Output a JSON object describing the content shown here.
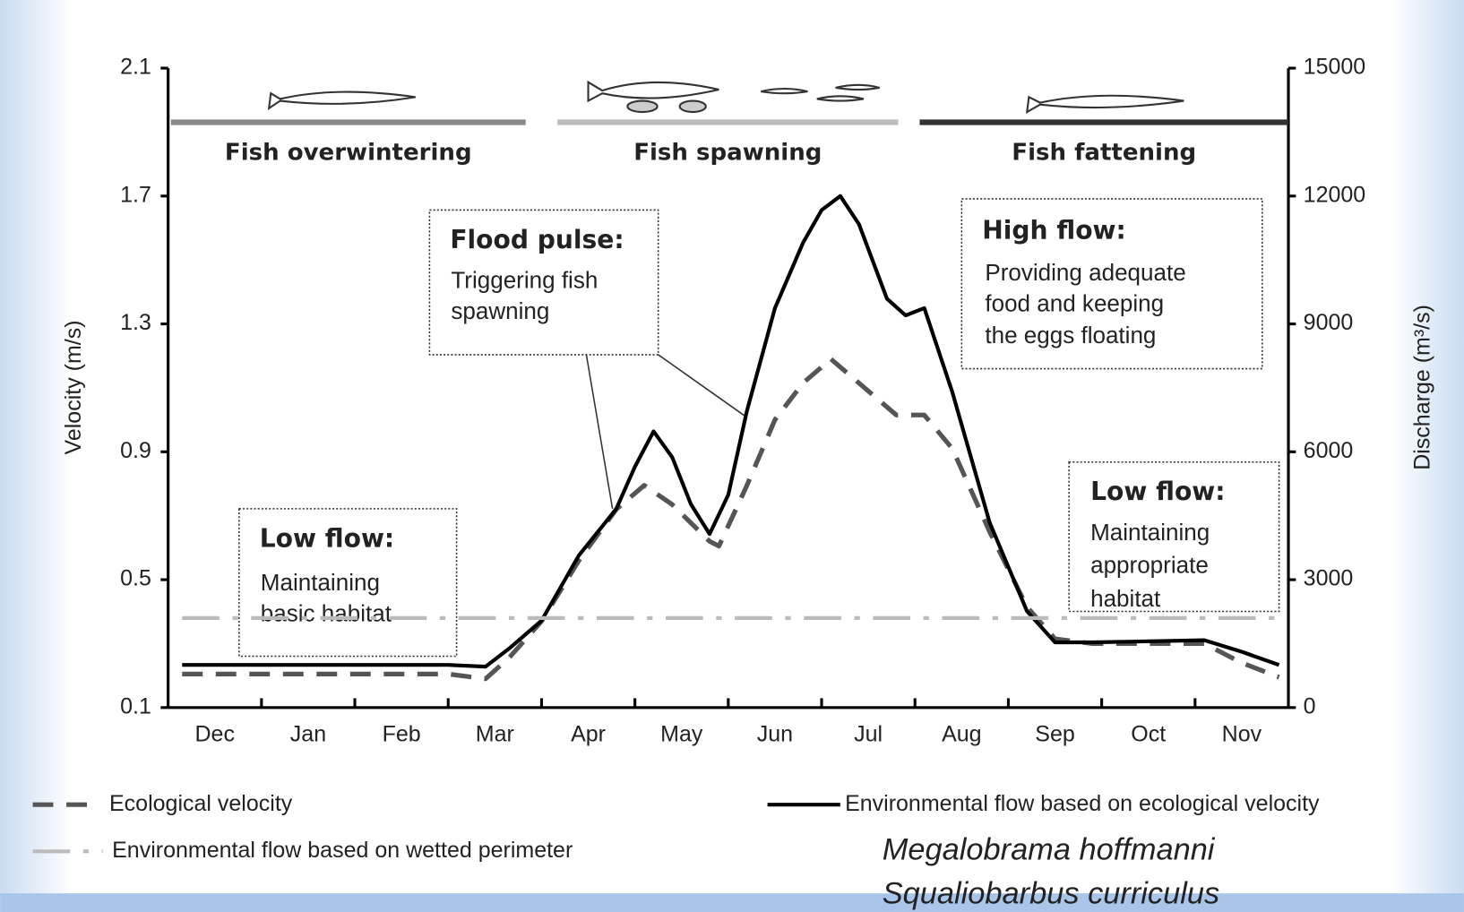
{
  "chart_data": {
    "type": "line",
    "categories": [
      "Dec",
      "Jan",
      "Feb",
      "Mar",
      "Apr",
      "May",
      "Jun",
      "Jul",
      "Aug",
      "Sep",
      "Oct",
      "Nov"
    ],
    "ylabel": "Velocity (m/s)",
    "y2label": "Discharge (m³/s)",
    "ylim": [
      0.1,
      2.1
    ],
    "yticks": [
      0.1,
      0.5,
      0.9,
      1.3,
      1.7,
      2.1
    ],
    "y2lim": [
      0,
      15000
    ],
    "y2ticks": [
      0,
      3000,
      6000,
      9000,
      12000,
      15000
    ],
    "series": [
      {
        "name": "Ecological velocity",
        "color": "#555555",
        "style": "dashed",
        "axis": "y",
        "x": [
          0.15,
          3.0,
          3.4,
          3.65,
          4.0,
          4.4,
          4.8,
          5.1,
          5.4,
          5.8,
          5.9,
          6.2,
          6.5,
          6.8,
          7.1,
          7.4,
          7.8,
          8.1,
          8.4,
          8.8,
          9.2,
          9.5,
          9.9,
          11.1,
          11.5,
          11.9
        ],
        "values": [
          0.205,
          0.205,
          0.19,
          0.255,
          0.37,
          0.56,
          0.72,
          0.795,
          0.735,
          0.62,
          0.605,
          0.795,
          1.0,
          1.115,
          1.19,
          1.115,
          1.015,
          1.015,
          0.91,
          0.65,
          0.415,
          0.315,
          0.3,
          0.3,
          0.24,
          0.195
        ]
      },
      {
        "name": "Environmental flow based on ecological velocity",
        "color": "#000000",
        "style": "solid",
        "axis": "y2",
        "x": [
          0.15,
          3.0,
          3.4,
          3.65,
          4.0,
          4.4,
          4.8,
          5.0,
          5.2,
          5.4,
          5.6,
          5.8,
          6.0,
          6.2,
          6.5,
          6.8,
          7.0,
          7.2,
          7.4,
          7.7,
          7.9,
          8.1,
          8.4,
          8.8,
          9.2,
          9.5,
          9.9,
          11.1,
          11.5,
          11.9
        ],
        "values": [
          1000,
          1000,
          960,
          1380,
          2040,
          3570,
          4660,
          5650,
          6480,
          5870,
          4770,
          4070,
          4990,
          6960,
          9370,
          10900,
          11670,
          12000,
          11340,
          9590,
          9200,
          9370,
          7400,
          4340,
          2260,
          1530,
          1530,
          1580,
          1310,
          1000
        ]
      },
      {
        "name": "Environmental flow based on wetted perimeter",
        "color": "#bbbbbb",
        "style": "dashdot",
        "axis": "y2",
        "x": [
          0.15,
          11.9
        ],
        "values": [
          2100,
          2100
        ]
      }
    ],
    "phases": [
      {
        "label": "Fish overwintering",
        "color": "#8a8a8a"
      },
      {
        "label": "Fish spawning",
        "color": "#bdbdbd"
      },
      {
        "label": "Fish fattening",
        "color": "#333333"
      }
    ],
    "annotations": [
      {
        "title": "Flood pulse:",
        "text": [
          "Triggering fish",
          "spawning"
        ]
      },
      {
        "title": "High flow:",
        "text": [
          "Providing adequate",
          "food and keeping",
          "the eggs floating"
        ]
      },
      {
        "title": "Low flow:",
        "text": [
          "Maintaining",
          "basic habitat"
        ]
      },
      {
        "title": "Low flow:",
        "text": [
          "Maintaining",
          "appropriate",
          "habitat"
        ]
      }
    ],
    "species": [
      "Megalobrama hoffmanni",
      "Squaliobarbus curriculus"
    ]
  }
}
